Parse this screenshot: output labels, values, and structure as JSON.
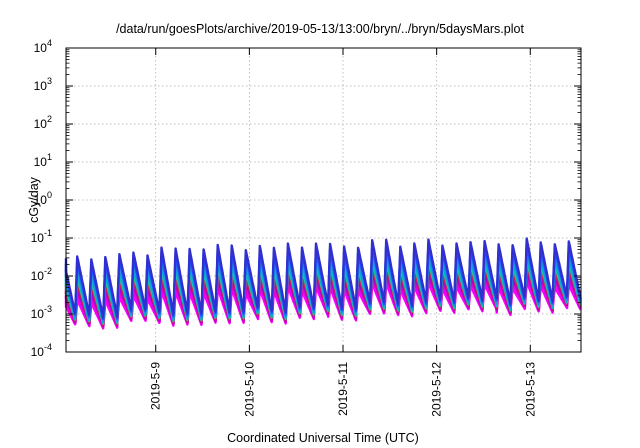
{
  "chart_data": {
    "type": "line",
    "title": "/data/run/goesPlots/archive/2019-05-13/13:00/bryn/../bryn/5daysMars.plot",
    "xlabel": "Coordinated Universal Time (UTC)",
    "ylabel": "cGy/day",
    "y_scale": "log",
    "ylim": [
      0.0001,
      10000
    ],
    "xlim": [
      "2019-05-08 01:00",
      "2019-05-13 13:00"
    ],
    "grid": true,
    "y_ticks": [
      {
        "mantissa": "10",
        "exp": "-4"
      },
      {
        "mantissa": "10",
        "exp": "-3"
      },
      {
        "mantissa": "10",
        "exp": "-2"
      },
      {
        "mantissa": "10",
        "exp": "-1"
      },
      {
        "mantissa": "10",
        "exp": "0"
      },
      {
        "mantissa": "10",
        "exp": "1"
      },
      {
        "mantissa": "10",
        "exp": "2"
      },
      {
        "mantissa": "10",
        "exp": "3"
      },
      {
        "mantissa": "10",
        "exp": "4"
      }
    ],
    "x_ticks": [
      "2019-5-9",
      "2019-5-10",
      "2019-5-11",
      "2019-5-12",
      "2019-5-13"
    ],
    "series_style": {
      "period_hours": 3.6,
      "colors": [
        "#ff00ff",
        "#e600e6",
        "#b000c8",
        "#d02050",
        "#20c0a0",
        "#00b0d0",
        "#2090e0",
        "#1e50ff",
        "#3030d0"
      ],
      "envelope_peak": [
        0.03,
        0.055,
        0.07,
        0.075,
        0.08
      ],
      "envelope_trough": [
        0.0009,
        0.0012,
        0.0015,
        0.002,
        0.003
      ],
      "spike_fraction": 0.15
    }
  }
}
